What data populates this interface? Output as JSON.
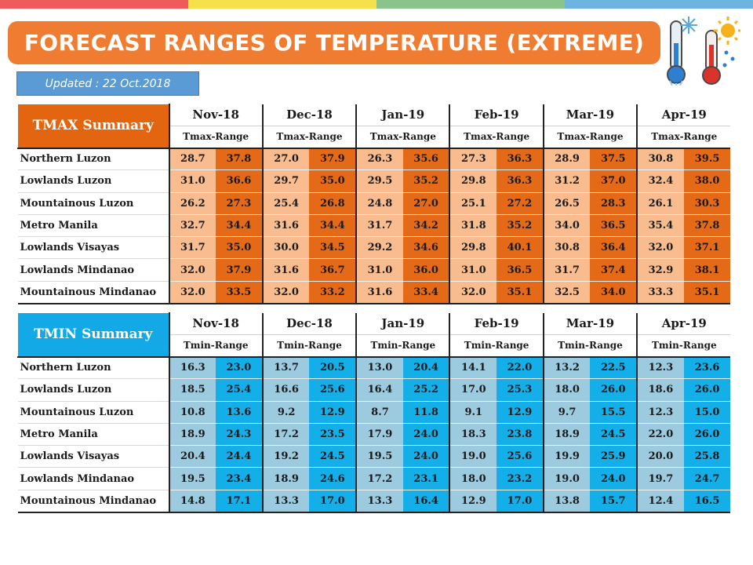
{
  "topbar_colors": [
    "#f15a5a",
    "#f7e14b",
    "#8ac48a",
    "#6fb4df"
  ],
  "title": "FORECAST RANGES OF TEMPERATURE (EXTREME)",
  "title_color": "#ef7c31",
  "updated": "Updated : 22 Oct.2018",
  "updated_color": "#5b9bd5",
  "months": [
    "Nov-18",
    "Dec-18",
    "Jan-19",
    "Feb-19",
    "Mar-19",
    "Apr-19"
  ],
  "tmax": {
    "label": "TMAX Summary",
    "range_label": "Tmax-Range",
    "header_color": "#e3650f",
    "low_color": "#f8bc8e",
    "high_color": "#e56a17",
    "rows": [
      {
        "region": "Northern Luzon",
        "values": [
          "28.7",
          "37.8",
          "27.0",
          "37.9",
          "26.3",
          "35.6",
          "27.3",
          "36.3",
          "28.9",
          "37.5",
          "30.8",
          "39.5"
        ]
      },
      {
        "region": "Lowlands Luzon",
        "values": [
          "31.0",
          "36.6",
          "29.7",
          "35.0",
          "29.5",
          "35.2",
          "29.8",
          "36.3",
          "31.2",
          "37.0",
          "32.4",
          "38.0"
        ]
      },
      {
        "region": "Mountainous Luzon",
        "values": [
          "26.2",
          "27.3",
          "25.4",
          "26.8",
          "24.8",
          "27.0",
          "25.1",
          "27.2",
          "26.5",
          "28.3",
          "26.1",
          "30.3"
        ]
      },
      {
        "region": "Metro Manila",
        "values": [
          "32.7",
          "34.4",
          "31.6",
          "34.4",
          "31.7",
          "34.2",
          "31.8",
          "35.2",
          "34.0",
          "36.5",
          "35.4",
          "37.8"
        ]
      },
      {
        "region": "Lowlands Visayas",
        "values": [
          "31.7",
          "35.0",
          "30.0",
          "34.5",
          "29.2",
          "34.6",
          "29.8",
          "40.1",
          "30.8",
          "36.4",
          "32.0",
          "37.1"
        ]
      },
      {
        "region": "Lowlands Mindanao",
        "values": [
          "32.0",
          "37.9",
          "31.6",
          "36.7",
          "31.0",
          "36.0",
          "31.0",
          "36.5",
          "31.7",
          "37.4",
          "32.9",
          "38.1"
        ]
      },
      {
        "region": "Mountainous Mindanao",
        "values": [
          "32.0",
          "33.5",
          "32.0",
          "33.2",
          "31.6",
          "33.4",
          "32.0",
          "35.1",
          "32.5",
          "34.0",
          "33.3",
          "35.1"
        ]
      }
    ]
  },
  "tmin": {
    "label": "TMIN Summary",
    "range_label": "Tmin-Range",
    "header_color": "#13a8e6",
    "low_color": "#9ccbdf",
    "high_color": "#14aee8",
    "rows": [
      {
        "region": "Northern Luzon",
        "values": [
          "16.3",
          "23.0",
          "13.7",
          "20.5",
          "13.0",
          "20.4",
          "14.1",
          "22.0",
          "13.2",
          "22.5",
          "12.3",
          "23.6"
        ]
      },
      {
        "region": "Lowlands Luzon",
        "values": [
          "18.5",
          "25.4",
          "16.6",
          "25.6",
          "16.4",
          "25.2",
          "17.0",
          "25.3",
          "18.0",
          "26.0",
          "18.6",
          "26.0"
        ]
      },
      {
        "region": "Mountainous Luzon",
        "values": [
          "10.8",
          "13.6",
          "9.2",
          "12.9",
          "8.7",
          "11.8",
          "9.1",
          "12.9",
          "9.7",
          "15.5",
          "12.3",
          "15.0"
        ]
      },
      {
        "region": "Metro Manila",
        "values": [
          "18.9",
          "24.3",
          "17.2",
          "23.5",
          "17.9",
          "24.0",
          "18.3",
          "23.8",
          "18.9",
          "24.5",
          "22.0",
          "26.0"
        ]
      },
      {
        "region": "Lowlands Visayas",
        "values": [
          "20.4",
          "24.4",
          "19.2",
          "24.5",
          "19.5",
          "24.0",
          "19.0",
          "25.6",
          "19.9",
          "25.9",
          "20.0",
          "25.8"
        ]
      },
      {
        "region": "Lowlands Mindanao",
        "values": [
          "19.5",
          "23.4",
          "18.9",
          "24.6",
          "17.2",
          "23.1",
          "18.0",
          "23.2",
          "19.0",
          "24.0",
          "19.7",
          "24.7"
        ]
      },
      {
        "region": "Mountainous Mindanao",
        "values": [
          "14.8",
          "17.1",
          "13.3",
          "17.0",
          "13.3",
          "16.4",
          "12.9",
          "17.0",
          "13.8",
          "15.7",
          "12.4",
          "16.5"
        ]
      }
    ]
  }
}
